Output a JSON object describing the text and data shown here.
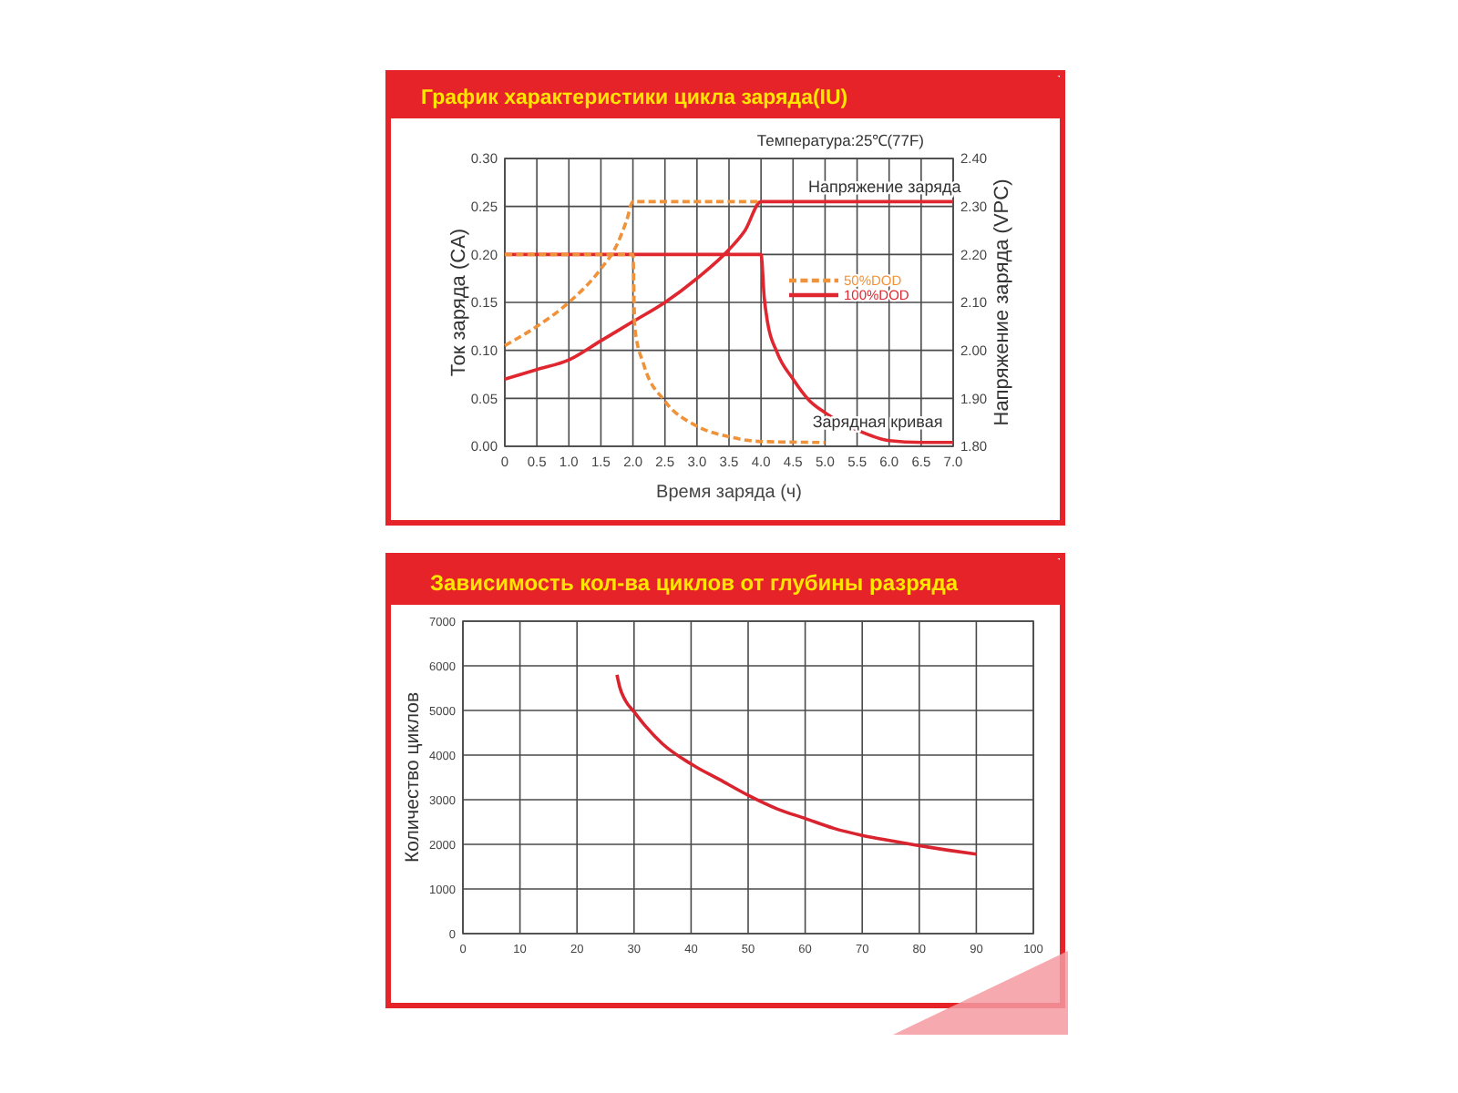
{
  "chart_data": [
    {
      "type": "line",
      "title": "График характеристики цикла заряда(IU)",
      "xlabel": "Время заряда (ч)",
      "ylabel": "Ток заряда (CA)",
      "y2label": "Напряжение заряда (VPC)",
      "xlim": [
        0,
        7
      ],
      "xticks": [
        0,
        0.5,
        {
          "value": 1,
          "label": "1.0"
        },
        1.5,
        {
          "value": 2,
          "label": "2.0"
        },
        2.5,
        {
          "value": 3,
          "label": "3.0"
        },
        3.5,
        {
          "value": 4,
          "label": "4.0"
        },
        4.5,
        {
          "value": 5,
          "label": "5.0"
        },
        5.5,
        {
          "value": 6,
          "label": "6.0"
        },
        6.5,
        {
          "value": 7,
          "label": "7.0"
        }
      ],
      "ylim": [
        0,
        0.3
      ],
      "yticks": [
        {
          "value": 0,
          "label": "0.00"
        },
        0.05,
        {
          "value": 0.1,
          "label": "0.10"
        },
        0.15,
        {
          "value": 0.2,
          "label": "0.20"
        },
        0.25,
        {
          "value": 0.3,
          "label": "0.30"
        }
      ],
      "y2lim": [
        1.8,
        2.4
      ],
      "y2ticks": [
        {
          "value": 1.8,
          "label": "1.80"
        },
        {
          "value": 1.9,
          "label": "1.90"
        },
        {
          "value": 2,
          "label": "2.00"
        },
        {
          "value": 2.1,
          "label": "2.10"
        },
        {
          "value": 2.2,
          "label": "2.20"
        },
        {
          "value": 2.3,
          "label": "2.30"
        },
        {
          "value": 2.4,
          "label": "2.40"
        }
      ],
      "grid": true,
      "legend": "right",
      "annotations": [
        "Температура:25℃(77F)",
        {
          "text": "Напряжение заряда",
          "x": 5.93,
          "y": 0.255
        },
        {
          "text": "Зарядная кривая",
          "x": 5.82,
          "y": 0.01
        }
      ],
      "series": [
        {
          "name": "50%DOD",
          "color": "#f0923a",
          "line_style": "dashed",
          "x": [
            0,
            2,
            2.03,
            2.17,
            2.5,
            3,
            3.5,
            4,
            5
          ],
          "values": [
            0.2,
            0.2,
            0.123,
            0.085,
            0.047,
            0.021,
            0.01,
            0.005,
            0.004
          ]
        },
        {
          "color": "#f0923a",
          "line_style": "dashed",
          "axis": "y2",
          "x": [
            0,
            0.5,
            1,
            1.5,
            1.75,
            1.9,
            2,
            4
          ],
          "values": [
            2.01,
            2.05,
            2.1,
            2.17,
            2.22,
            2.27,
            2.31,
            2.31
          ]
        },
        {
          "name": "100%DOD",
          "color": "#e0262f",
          "line_style": "solid",
          "x": [
            0,
            4,
            4.05,
            4.1,
            4.25,
            4.5,
            4.75,
            5,
            5.5,
            6,
            6.5,
            7
          ],
          "values": [
            0.2,
            0.2,
            0.155,
            0.13,
            0.098,
            0.07,
            0.048,
            0.035,
            0.017,
            0.006,
            0.004,
            0.004
          ]
        },
        {
          "color": "#e0262f",
          "line_style": "solid",
          "axis": "y2",
          "x": [
            0,
            0.5,
            1,
            1.5,
            2,
            2.5,
            3,
            3.5,
            3.75,
            4,
            7
          ],
          "values": [
            1.94,
            1.96,
            1.98,
            2.02,
            2.06,
            2.1,
            2.15,
            2.21,
            2.25,
            2.31,
            2.31
          ]
        }
      ]
    },
    {
      "type": "line",
      "title": "Зависимость кол-ва циклов от глубины разряда",
      "ylabel": "Количество циклов",
      "xlim": [
        0,
        100
      ],
      "xticks": [
        0,
        10,
        20,
        30,
        40,
        50,
        60,
        70,
        80,
        90,
        100
      ],
      "ylim": [
        0,
        7000
      ],
      "yticks": [
        0,
        1000,
        2000,
        3000,
        4000,
        5000,
        6000,
        7000
      ],
      "grid": true,
      "color": "#d9232e",
      "x": [
        27,
        27.5,
        28.5,
        30,
        32,
        35,
        40,
        45,
        50,
        55,
        60,
        65,
        70,
        75,
        80,
        85,
        90
      ],
      "values": [
        5800,
        5520,
        5220,
        4970,
        4650,
        4250,
        3800,
        3450,
        3100,
        2800,
        2580,
        2360,
        2200,
        2080,
        1970,
        1870,
        1780
      ]
    }
  ]
}
